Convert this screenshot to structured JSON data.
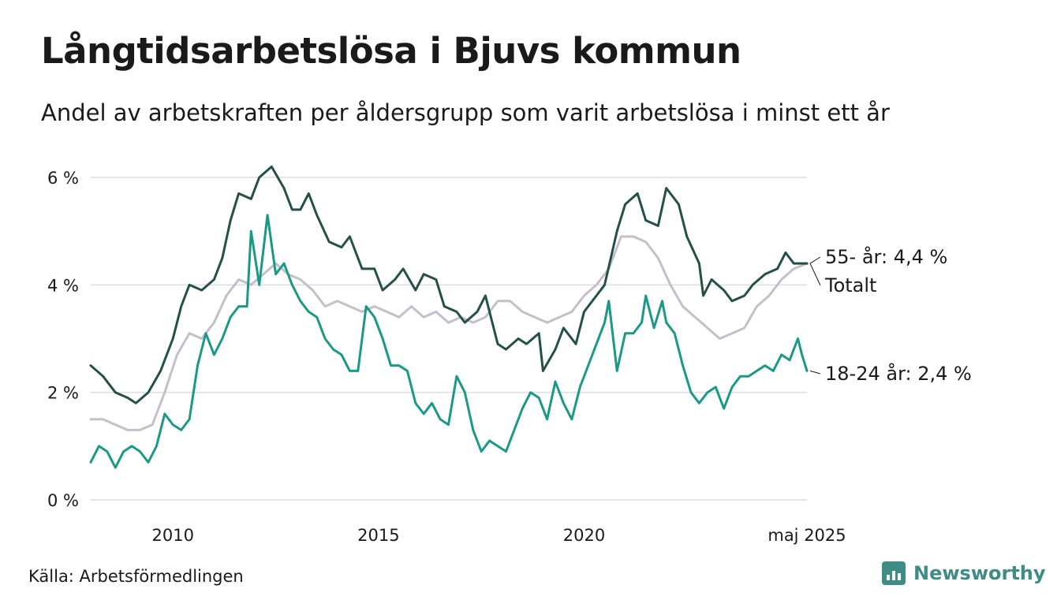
{
  "header": {
    "title": "Långtidsarbetslösa i Bjuvs kommun",
    "subtitle": "Andel av arbetskraften per åldersgrupp som varit arbetslösa i minst ett år"
  },
  "footer": {
    "source": "Källa: Arbetsförmedlingen",
    "brand": "Newsworthy"
  },
  "colors": {
    "series_55": "#24504a",
    "series_total": "#c3bfcc",
    "series_18_24": "#1b9987",
    "grid": "#dddde2",
    "brand": "#3d8c85"
  },
  "chart_data": {
    "type": "line",
    "title": "Långtidsarbetslösa i Bjuvs kommun",
    "subtitle": "Andel av arbetskraften per åldersgrupp som varit arbetslösa i minst ett år",
    "xlabel": "",
    "ylabel": "",
    "xlim": [
      2008.0,
      2025.42
    ],
    "ylim": [
      0,
      6.3
    ],
    "y_ticks": [
      {
        "value": 0,
        "label": "0 %"
      },
      {
        "value": 2,
        "label": "2 %"
      },
      {
        "value": 4,
        "label": "4 %"
      },
      {
        "value": 6,
        "label": "6 %"
      }
    ],
    "x_ticks": [
      {
        "value": 2010,
        "label": "2010"
      },
      {
        "value": 2015,
        "label": "2015"
      },
      {
        "value": 2020,
        "label": "2020"
      },
      {
        "value": 2025.42,
        "label": "maj 2025"
      }
    ],
    "grid": "horizontal",
    "legend": "end labels",
    "series": [
      {
        "key": "total",
        "end_label": "Totalt",
        "color": "#c3bfcc",
        "points": [
          [
            2008.0,
            1.5
          ],
          [
            2008.3,
            1.5
          ],
          [
            2008.6,
            1.4
          ],
          [
            2008.9,
            1.3
          ],
          [
            2009.2,
            1.3
          ],
          [
            2009.5,
            1.4
          ],
          [
            2009.8,
            2.0
          ],
          [
            2010.1,
            2.7
          ],
          [
            2010.4,
            3.1
          ],
          [
            2010.7,
            3.0
          ],
          [
            2011.0,
            3.3
          ],
          [
            2011.3,
            3.8
          ],
          [
            2011.6,
            4.1
          ],
          [
            2011.9,
            4.0
          ],
          [
            2012.2,
            4.2
          ],
          [
            2012.5,
            4.4
          ],
          [
            2012.8,
            4.2
          ],
          [
            2013.1,
            4.1
          ],
          [
            2013.4,
            3.9
          ],
          [
            2013.7,
            3.6
          ],
          [
            2014.0,
            3.7
          ],
          [
            2014.3,
            3.6
          ],
          [
            2014.6,
            3.5
          ],
          [
            2014.9,
            3.6
          ],
          [
            2015.2,
            3.5
          ],
          [
            2015.5,
            3.4
          ],
          [
            2015.8,
            3.6
          ],
          [
            2016.1,
            3.4
          ],
          [
            2016.4,
            3.5
          ],
          [
            2016.7,
            3.3
          ],
          [
            2017.0,
            3.4
          ],
          [
            2017.3,
            3.3
          ],
          [
            2017.6,
            3.4
          ],
          [
            2017.9,
            3.7
          ],
          [
            2018.2,
            3.7
          ],
          [
            2018.5,
            3.5
          ],
          [
            2018.8,
            3.4
          ],
          [
            2019.1,
            3.3
          ],
          [
            2019.4,
            3.4
          ],
          [
            2019.7,
            3.5
          ],
          [
            2020.0,
            3.8
          ],
          [
            2020.3,
            4.0
          ],
          [
            2020.6,
            4.3
          ],
          [
            2020.9,
            4.9
          ],
          [
            2021.2,
            4.9
          ],
          [
            2021.5,
            4.8
          ],
          [
            2021.8,
            4.5
          ],
          [
            2022.1,
            4.0
          ],
          [
            2022.4,
            3.6
          ],
          [
            2022.7,
            3.4
          ],
          [
            2023.0,
            3.2
          ],
          [
            2023.3,
            3.0
          ],
          [
            2023.6,
            3.1
          ],
          [
            2023.9,
            3.2
          ],
          [
            2024.2,
            3.6
          ],
          [
            2024.5,
            3.8
          ],
          [
            2024.8,
            4.1
          ],
          [
            2025.1,
            4.3
          ],
          [
            2025.42,
            4.4
          ]
        ]
      },
      {
        "key": "55",
        "end_label": "55- år: 4,4 %",
        "color": "#24504a",
        "points": [
          [
            2008.0,
            2.5
          ],
          [
            2008.3,
            2.3
          ],
          [
            2008.6,
            2.0
          ],
          [
            2008.9,
            1.9
          ],
          [
            2009.1,
            1.8
          ],
          [
            2009.4,
            2.0
          ],
          [
            2009.7,
            2.4
          ],
          [
            2010.0,
            3.0
          ],
          [
            2010.2,
            3.6
          ],
          [
            2010.4,
            4.0
          ],
          [
            2010.7,
            3.9
          ],
          [
            2011.0,
            4.1
          ],
          [
            2011.2,
            4.5
          ],
          [
            2011.4,
            5.2
          ],
          [
            2011.6,
            5.7
          ],
          [
            2011.9,
            5.6
          ],
          [
            2012.1,
            6.0
          ],
          [
            2012.4,
            6.2
          ],
          [
            2012.7,
            5.8
          ],
          [
            2012.9,
            5.4
          ],
          [
            2013.1,
            5.4
          ],
          [
            2013.3,
            5.7
          ],
          [
            2013.5,
            5.3
          ],
          [
            2013.8,
            4.8
          ],
          [
            2014.1,
            4.7
          ],
          [
            2014.3,
            4.9
          ],
          [
            2014.6,
            4.3
          ],
          [
            2014.9,
            4.3
          ],
          [
            2015.1,
            3.9
          ],
          [
            2015.4,
            4.1
          ],
          [
            2015.6,
            4.3
          ],
          [
            2015.9,
            3.9
          ],
          [
            2016.1,
            4.2
          ],
          [
            2016.4,
            4.1
          ],
          [
            2016.6,
            3.6
          ],
          [
            2016.9,
            3.5
          ],
          [
            2017.1,
            3.3
          ],
          [
            2017.4,
            3.5
          ],
          [
            2017.6,
            3.8
          ],
          [
            2017.9,
            2.9
          ],
          [
            2018.1,
            2.8
          ],
          [
            2018.4,
            3.0
          ],
          [
            2018.6,
            2.9
          ],
          [
            2018.9,
            3.1
          ],
          [
            2019.0,
            2.4
          ],
          [
            2019.3,
            2.8
          ],
          [
            2019.5,
            3.2
          ],
          [
            2019.8,
            2.9
          ],
          [
            2020.0,
            3.5
          ],
          [
            2020.3,
            3.8
          ],
          [
            2020.5,
            4.0
          ],
          [
            2020.8,
            5.0
          ],
          [
            2021.0,
            5.5
          ],
          [
            2021.3,
            5.7
          ],
          [
            2021.5,
            5.2
          ],
          [
            2021.8,
            5.1
          ],
          [
            2022.0,
            5.8
          ],
          [
            2022.3,
            5.5
          ],
          [
            2022.5,
            4.9
          ],
          [
            2022.8,
            4.4
          ],
          [
            2022.9,
            3.8
          ],
          [
            2023.1,
            4.1
          ],
          [
            2023.4,
            3.9
          ],
          [
            2023.6,
            3.7
          ],
          [
            2023.9,
            3.8
          ],
          [
            2024.1,
            4.0
          ],
          [
            2024.4,
            4.2
          ],
          [
            2024.7,
            4.3
          ],
          [
            2024.9,
            4.6
          ],
          [
            2025.1,
            4.4
          ],
          [
            2025.42,
            4.4
          ]
        ]
      },
      {
        "key": "18_24",
        "end_label": "18-24 år: 2,4 %",
        "color": "#1b9987",
        "points": [
          [
            2008.0,
            0.7
          ],
          [
            2008.2,
            1.0
          ],
          [
            2008.4,
            0.9
          ],
          [
            2008.6,
            0.6
          ],
          [
            2008.8,
            0.9
          ],
          [
            2009.0,
            1.0
          ],
          [
            2009.2,
            0.9
          ],
          [
            2009.4,
            0.7
          ],
          [
            2009.6,
            1.0
          ],
          [
            2009.8,
            1.6
          ],
          [
            2010.0,
            1.4
          ],
          [
            2010.2,
            1.3
          ],
          [
            2010.4,
            1.5
          ],
          [
            2010.6,
            2.5
          ],
          [
            2010.8,
            3.1
          ],
          [
            2011.0,
            2.7
          ],
          [
            2011.2,
            3.0
          ],
          [
            2011.4,
            3.4
          ],
          [
            2011.6,
            3.6
          ],
          [
            2011.8,
            3.6
          ],
          [
            2011.9,
            5.0
          ],
          [
            2012.1,
            4.0
          ],
          [
            2012.3,
            5.3
          ],
          [
            2012.5,
            4.2
          ],
          [
            2012.7,
            4.4
          ],
          [
            2012.9,
            4.0
          ],
          [
            2013.1,
            3.7
          ],
          [
            2013.3,
            3.5
          ],
          [
            2013.5,
            3.4
          ],
          [
            2013.7,
            3.0
          ],
          [
            2013.9,
            2.8
          ],
          [
            2014.1,
            2.7
          ],
          [
            2014.3,
            2.4
          ],
          [
            2014.5,
            2.4
          ],
          [
            2014.7,
            3.6
          ],
          [
            2014.9,
            3.4
          ],
          [
            2015.1,
            3.0
          ],
          [
            2015.3,
            2.5
          ],
          [
            2015.5,
            2.5
          ],
          [
            2015.7,
            2.4
          ],
          [
            2015.9,
            1.8
          ],
          [
            2016.1,
            1.6
          ],
          [
            2016.3,
            1.8
          ],
          [
            2016.5,
            1.5
          ],
          [
            2016.7,
            1.4
          ],
          [
            2016.9,
            2.3
          ],
          [
            2017.1,
            2.0
          ],
          [
            2017.3,
            1.3
          ],
          [
            2017.5,
            0.9
          ],
          [
            2017.7,
            1.1
          ],
          [
            2017.9,
            1.0
          ],
          [
            2018.1,
            0.9
          ],
          [
            2018.3,
            1.3
          ],
          [
            2018.5,
            1.7
          ],
          [
            2018.7,
            2.0
          ],
          [
            2018.9,
            1.9
          ],
          [
            2019.1,
            1.5
          ],
          [
            2019.3,
            2.2
          ],
          [
            2019.5,
            1.8
          ],
          [
            2019.7,
            1.5
          ],
          [
            2019.9,
            2.1
          ],
          [
            2020.1,
            2.5
          ],
          [
            2020.3,
            2.9
          ],
          [
            2020.5,
            3.3
          ],
          [
            2020.6,
            3.7
          ],
          [
            2020.8,
            2.4
          ],
          [
            2021.0,
            3.1
          ],
          [
            2021.2,
            3.1
          ],
          [
            2021.4,
            3.3
          ],
          [
            2021.5,
            3.8
          ],
          [
            2021.7,
            3.2
          ],
          [
            2021.9,
            3.7
          ],
          [
            2022.0,
            3.3
          ],
          [
            2022.2,
            3.1
          ],
          [
            2022.4,
            2.5
          ],
          [
            2022.6,
            2.0
          ],
          [
            2022.8,
            1.8
          ],
          [
            2023.0,
            2.0
          ],
          [
            2023.2,
            2.1
          ],
          [
            2023.4,
            1.7
          ],
          [
            2023.6,
            2.1
          ],
          [
            2023.8,
            2.3
          ],
          [
            2024.0,
            2.3
          ],
          [
            2024.2,
            2.4
          ],
          [
            2024.4,
            2.5
          ],
          [
            2024.6,
            2.4
          ],
          [
            2024.8,
            2.7
          ],
          [
            2025.0,
            2.6
          ],
          [
            2025.2,
            3.0
          ],
          [
            2025.3,
            2.7
          ],
          [
            2025.42,
            2.4
          ]
        ]
      }
    ]
  }
}
